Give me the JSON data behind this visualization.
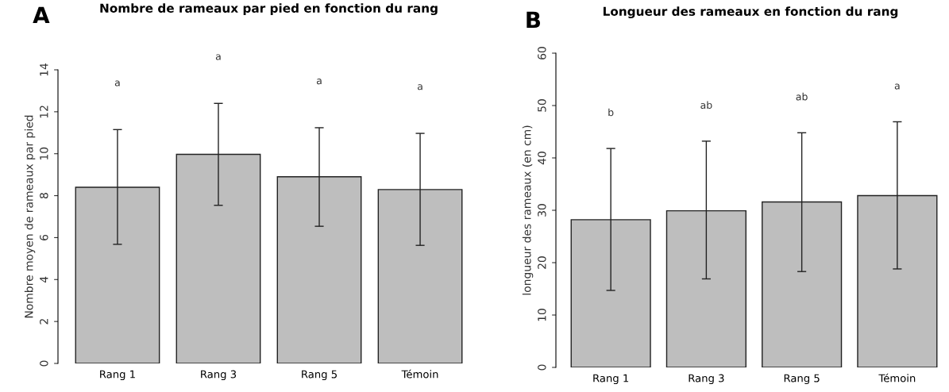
{
  "chart_data": [
    {
      "type": "bar",
      "title": "Nombre de rameaux par pied en fonction du rang",
      "ylabel": "Nombre moyen de rameaux par pied",
      "categories": [
        "Rang 1",
        "Rang 3",
        "Rang 5",
        "Témoin"
      ],
      "values": [
        8.4,
        9.97,
        8.9,
        8.29
      ],
      "errors": [
        [
          5.68,
          11.15
        ],
        [
          7.54,
          12.4
        ],
        [
          6.54,
          11.24
        ],
        [
          5.63,
          10.97
        ]
      ],
      "color": "#bebebe",
      "ylim": [
        0,
        14
      ],
      "yticks": [
        0,
        2,
        4,
        6,
        8,
        10,
        12,
        14
      ],
      "grid": false,
      "annotations": [
        "A",
        "a",
        "a",
        "a",
        "a"
      ]
    },
    {
      "type": "bar",
      "title": "Longueur des rameaux en fonction du rang",
      "ylabel": "longueur des rameaux (en cm)",
      "categories": [
        "Rang 1",
        "Rang 3",
        "Rang 5",
        "Témoin"
      ],
      "values": [
        28.2,
        29.9,
        31.6,
        32.8
      ],
      "errors": [
        [
          14.7,
          41.8
        ],
        [
          16.9,
          43.2
        ],
        [
          18.3,
          44.8
        ],
        [
          18.8,
          46.9
        ]
      ],
      "color": "#bebebe",
      "ylim": [
        0,
        60
      ],
      "yticks": [
        0,
        10,
        20,
        30,
        40,
        50,
        60
      ],
      "grid": false,
      "annotations": [
        "B",
        "b",
        "ab",
        "ab",
        "a"
      ]
    }
  ]
}
